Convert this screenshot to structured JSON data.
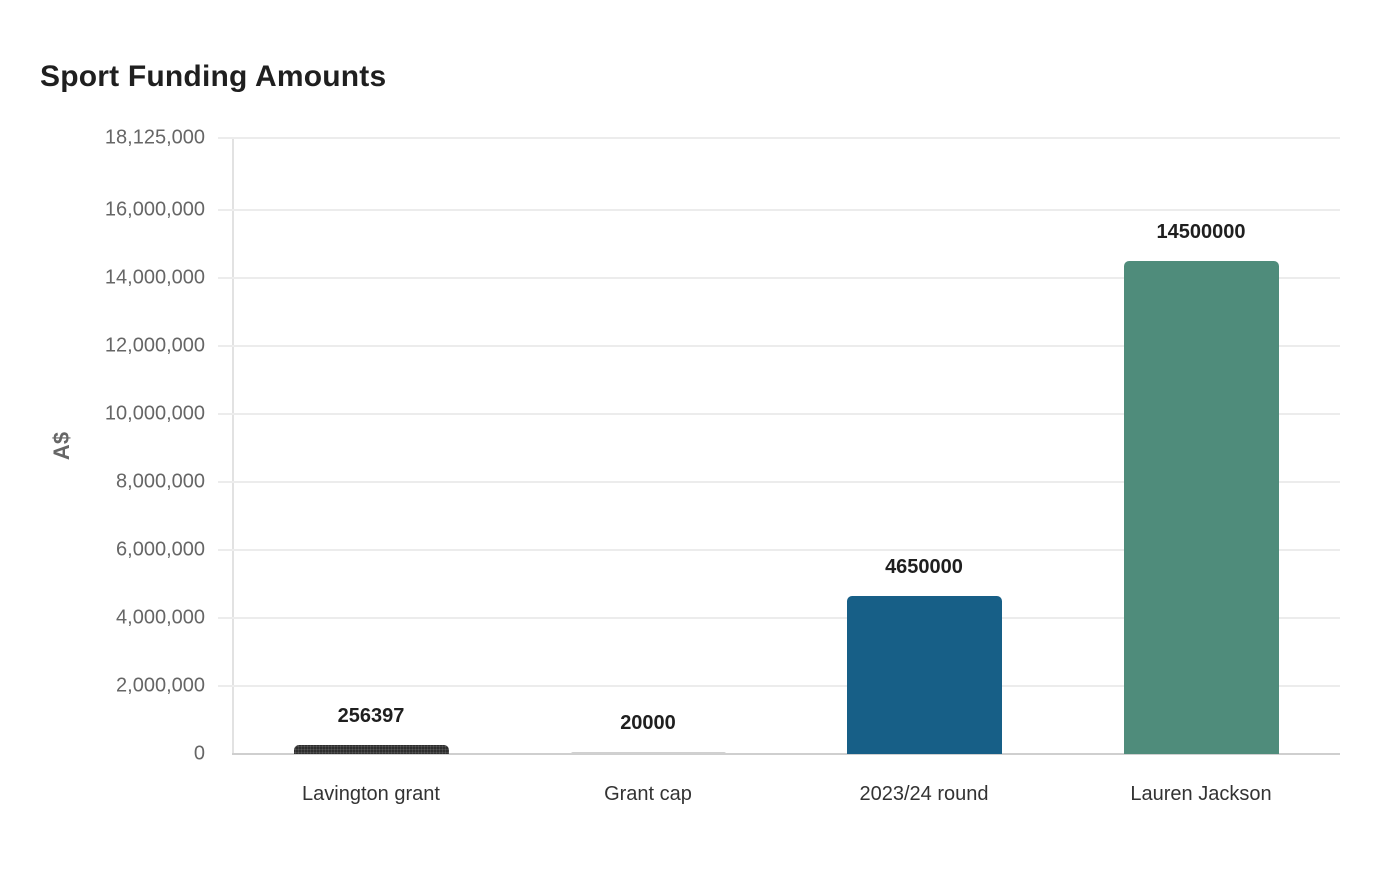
{
  "chart_data": {
    "type": "bar",
    "title": "Sport Funding Amounts",
    "xlabel": "",
    "ylabel": "A$",
    "categories": [
      "Lavington grant",
      "Grant cap",
      "2023/24 round",
      "Lauren Jackson"
    ],
    "values": [
      256397,
      20000,
      4650000,
      14500000
    ],
    "value_labels": [
      "256397",
      "20000",
      "4650000",
      "14500000"
    ],
    "colors": [
      "#2d2d2d",
      "#d0d0d0",
      "#175f87",
      "#4f8c7b"
    ],
    "ylim": [
      0,
      18125000
    ],
    "yticks": [
      0,
      2000000,
      4000000,
      6000000,
      8000000,
      10000000,
      12000000,
      14000000,
      16000000,
      18125000
    ],
    "ytick_labels": [
      "0",
      "2,000,000",
      "4,000,000",
      "6,000,000",
      "8,000,000",
      "10,000,000",
      "12,000,000",
      "14,000,000",
      "16,000,000",
      "18,125,000"
    ],
    "grid": true,
    "legend": "none"
  }
}
